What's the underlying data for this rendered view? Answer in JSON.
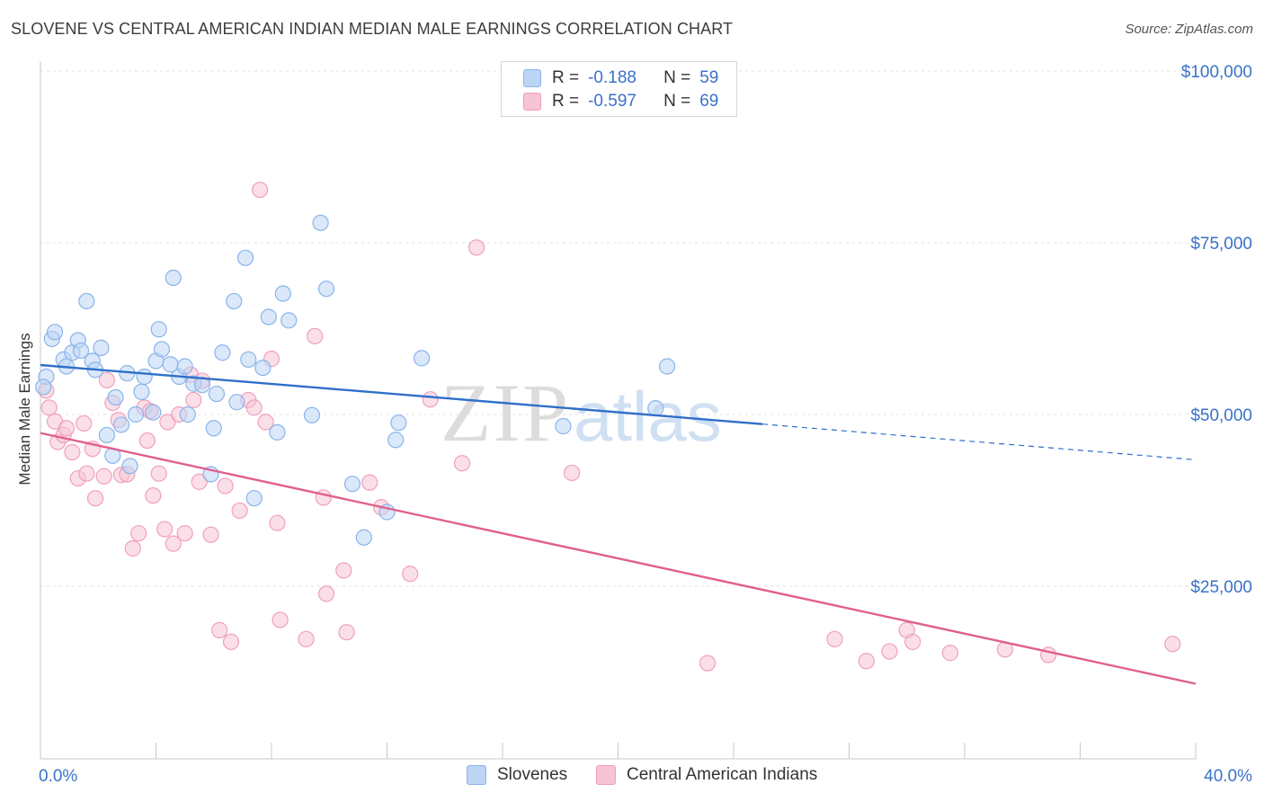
{
  "title": "SLOVENE VS CENTRAL AMERICAN INDIAN MEDIAN MALE EARNINGS CORRELATION CHART",
  "source": "Source: ZipAtlas.com",
  "watermark": {
    "zip": "ZIP",
    "atlas": "atlas"
  },
  "stats": {
    "r_label": "R =",
    "n_label": "N =",
    "rows": [
      {
        "r": "-0.188",
        "n": "59"
      },
      {
        "r": "-0.597",
        "n": "69"
      }
    ]
  },
  "chart_data": {
    "type": "scatter",
    "title": "SLOVENE VS CENTRAL AMERICAN INDIAN MEDIAN MALE EARNINGS CORRELATION CHART",
    "xlabel": "",
    "ylabel": "Median Male Earnings",
    "xlim": [
      0,
      40
    ],
    "ylim": [
      0,
      105000
    ],
    "x_tick_labels": [
      "0.0%",
      "40.0%"
    ],
    "y_ticks": [
      25000,
      50000,
      75000,
      100000
    ],
    "y_tick_labels": [
      "$25,000",
      "$50,000",
      "$75,000",
      "$100,000"
    ],
    "grid": true,
    "legend_position": "bottom",
    "series": [
      {
        "name": "Slovenes",
        "color": "#8ab4ea",
        "fill": "#bcd5f5",
        "line_color": "#2f6fc9",
        "trend": {
          "x0": 0.0,
          "y0": 57200,
          "x1": 25.0,
          "y1": 48600,
          "x_dash_end": 40.0,
          "y_dash_end": 43400
        },
        "points": [
          [
            0.2,
            55500
          ],
          [
            0.4,
            61000
          ],
          [
            0.5,
            62000
          ],
          [
            0.8,
            58000
          ],
          [
            0.9,
            57000
          ],
          [
            1.1,
            59000
          ],
          [
            1.3,
            60800
          ],
          [
            1.4,
            59300
          ],
          [
            1.6,
            66500
          ],
          [
            1.8,
            57800
          ],
          [
            1.9,
            56500
          ],
          [
            2.1,
            59700
          ],
          [
            2.3,
            47000
          ],
          [
            2.5,
            44000
          ],
          [
            2.6,
            52500
          ],
          [
            2.8,
            48500
          ],
          [
            3.0,
            56000
          ],
          [
            3.1,
            42500
          ],
          [
            3.3,
            50000
          ],
          [
            3.5,
            53300
          ],
          [
            3.6,
            55500
          ],
          [
            3.9,
            50300
          ],
          [
            4.0,
            57800
          ],
          [
            4.1,
            62400
          ],
          [
            4.2,
            59500
          ],
          [
            4.5,
            57300
          ],
          [
            4.6,
            69900
          ],
          [
            4.8,
            55500
          ],
          [
            5.0,
            57000
          ],
          [
            5.1,
            50000
          ],
          [
            5.3,
            54500
          ],
          [
            5.6,
            54300
          ],
          [
            5.9,
            41300
          ],
          [
            6.0,
            48000
          ],
          [
            6.1,
            53000
          ],
          [
            6.3,
            59000
          ],
          [
            6.7,
            66500
          ],
          [
            6.8,
            51800
          ],
          [
            7.1,
            72800
          ],
          [
            7.2,
            58000
          ],
          [
            7.4,
            37800
          ],
          [
            7.7,
            56800
          ],
          [
            7.9,
            64200
          ],
          [
            8.2,
            47400
          ],
          [
            8.4,
            67600
          ],
          [
            8.6,
            63700
          ],
          [
            9.4,
            49900
          ],
          [
            9.7,
            77900
          ],
          [
            9.9,
            68300
          ],
          [
            10.8,
            39900
          ],
          [
            11.2,
            32100
          ],
          [
            12.0,
            35800
          ],
          [
            12.4,
            48800
          ],
          [
            12.3,
            46300
          ],
          [
            13.2,
            58200
          ],
          [
            18.1,
            48300
          ],
          [
            21.3,
            50900
          ],
          [
            21.7,
            57000
          ],
          [
            0.1,
            54000
          ]
        ]
      },
      {
        "name": "Central American Indians",
        "color": "#f0a0bc",
        "fill": "#f7c4d5",
        "line_color": "#e0608c",
        "trend": {
          "x0": 0.0,
          "y0": 47300,
          "x1": 40.0,
          "y1": 10800
        },
        "points": [
          [
            0.2,
            53500
          ],
          [
            0.3,
            51000
          ],
          [
            0.5,
            49000
          ],
          [
            0.6,
            46000
          ],
          [
            0.8,
            47000
          ],
          [
            0.9,
            48000
          ],
          [
            1.1,
            44500
          ],
          [
            1.3,
            40700
          ],
          [
            1.5,
            48700
          ],
          [
            1.6,
            41400
          ],
          [
            1.8,
            45000
          ],
          [
            1.9,
            37800
          ],
          [
            2.2,
            41000
          ],
          [
            2.3,
            55000
          ],
          [
            2.5,
            51700
          ],
          [
            2.7,
            49200
          ],
          [
            2.8,
            41200
          ],
          [
            3.0,
            41300
          ],
          [
            3.2,
            30500
          ],
          [
            3.4,
            32700
          ],
          [
            3.6,
            51000
          ],
          [
            3.7,
            46200
          ],
          [
            3.8,
            50500
          ],
          [
            3.9,
            38200
          ],
          [
            4.1,
            41400
          ],
          [
            4.3,
            33300
          ],
          [
            4.4,
            48900
          ],
          [
            4.6,
            31200
          ],
          [
            4.8,
            50000
          ],
          [
            5.0,
            32700
          ],
          [
            5.2,
            55800
          ],
          [
            5.3,
            52100
          ],
          [
            5.5,
            40200
          ],
          [
            5.6,
            54900
          ],
          [
            5.9,
            32500
          ],
          [
            6.2,
            18600
          ],
          [
            6.4,
            39600
          ],
          [
            6.6,
            16900
          ],
          [
            6.9,
            36000
          ],
          [
            7.2,
            52100
          ],
          [
            7.4,
            51000
          ],
          [
            7.6,
            82700
          ],
          [
            7.8,
            48900
          ],
          [
            8.0,
            58100
          ],
          [
            8.2,
            34200
          ],
          [
            8.3,
            20100
          ],
          [
            9.2,
            17300
          ],
          [
            9.5,
            61400
          ],
          [
            9.8,
            37900
          ],
          [
            9.9,
            23900
          ],
          [
            10.5,
            27300
          ],
          [
            10.6,
            18300
          ],
          [
            11.4,
            40100
          ],
          [
            11.8,
            36500
          ],
          [
            12.8,
            26800
          ],
          [
            13.5,
            52200
          ],
          [
            14.6,
            42900
          ],
          [
            15.1,
            74300
          ],
          [
            18.4,
            41500
          ],
          [
            23.1,
            13800
          ],
          [
            27.5,
            17300
          ],
          [
            28.6,
            14100
          ],
          [
            29.4,
            15500
          ],
          [
            30.0,
            18600
          ],
          [
            30.2,
            16900
          ],
          [
            31.5,
            15300
          ],
          [
            33.4,
            15800
          ],
          [
            34.9,
            15000
          ],
          [
            39.2,
            16600
          ]
        ]
      }
    ]
  }
}
